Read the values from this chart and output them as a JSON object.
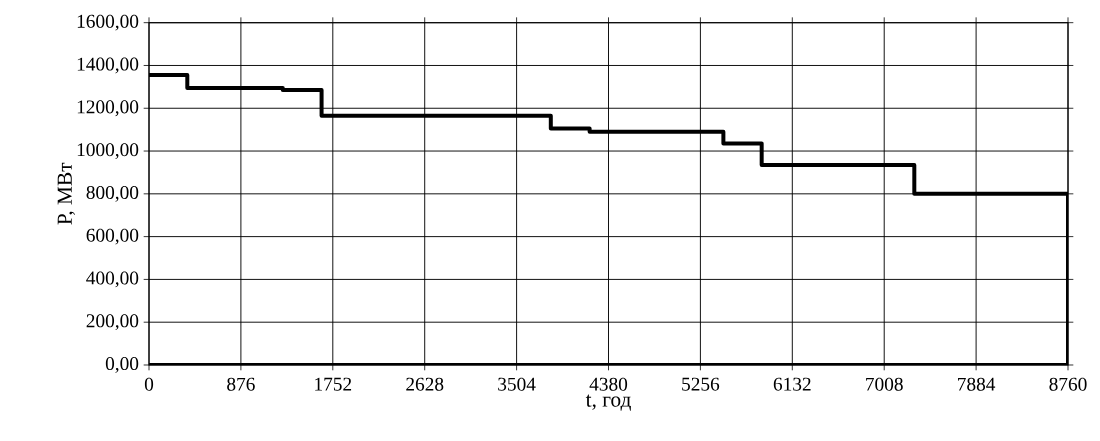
{
  "chart_data": {
    "type": "step",
    "xlabel": "t, год",
    "ylabel": "P, МВт",
    "series": [
      {
        "color": "#000000",
        "x": [
          0,
          365,
          1275,
          1645,
          3830,
          4200,
          5475,
          5840,
          7295,
          8760,
          8760
        ],
        "values": [
          1355,
          1295,
          1285,
          1165,
          1105,
          1090,
          1035,
          935,
          800,
          800,
          0
        ]
      },
      {
        "type": "line",
        "color": "#000000",
        "x": [
          0,
          8760
        ],
        "values": [
          0,
          0
        ]
      }
    ],
    "xlim": [
      0,
      8760
    ],
    "xticks": [
      0,
      876,
      1752,
      2628,
      3504,
      4380,
      5256,
      6132,
      7008,
      7884,
      8760
    ],
    "ylim": [
      0,
      1600
    ],
    "yticks": [
      {
        "value": 0,
        "label": "0,00"
      },
      {
        "value": 200,
        "label": "200,00"
      },
      {
        "value": 400,
        "label": "400,00"
      },
      {
        "value": 600,
        "label": "600,00"
      },
      {
        "value": 800,
        "label": "800,00"
      },
      {
        "value": 1000,
        "label": "1000,00"
      },
      {
        "value": 1200,
        "label": "1200,00"
      },
      {
        "value": 1400,
        "label": "1400,00"
      },
      {
        "value": 1600,
        "label": "1600,00"
      }
    ],
    "grid": true,
    "marker": "none",
    "line_style": "solid"
  }
}
